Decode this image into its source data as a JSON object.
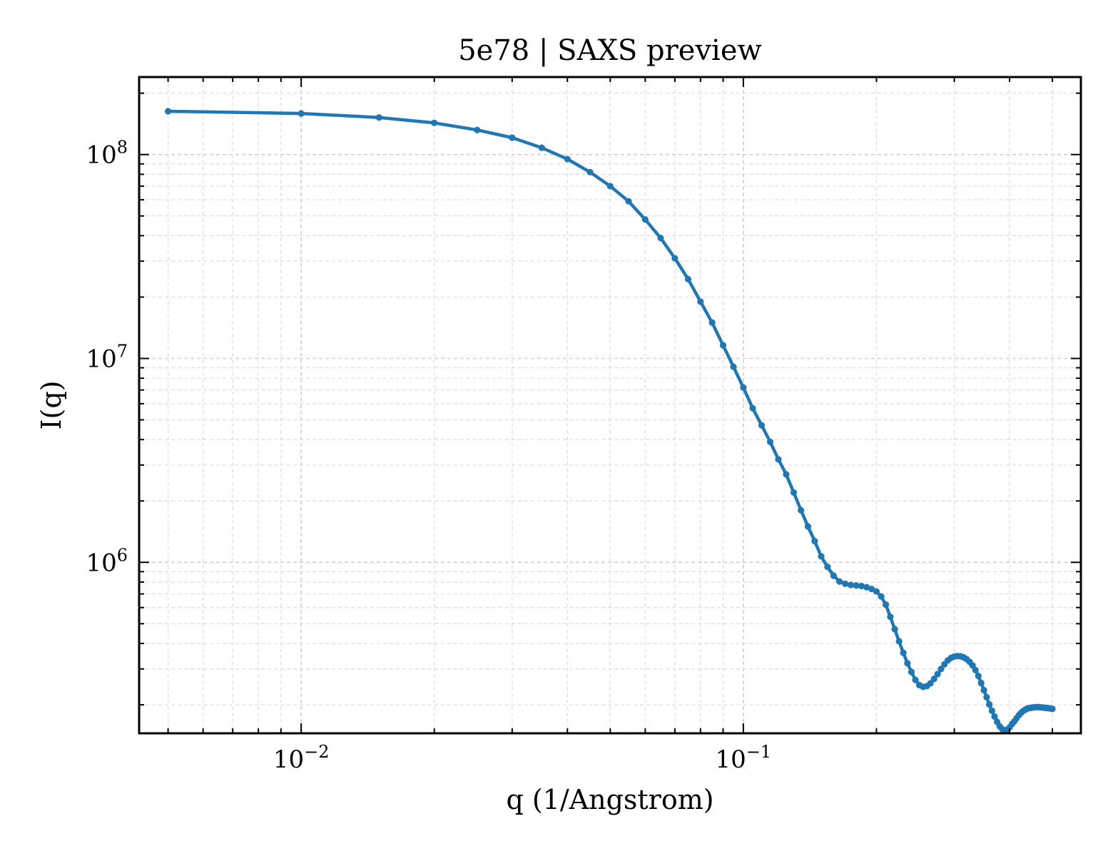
{
  "chart_data": {
    "type": "line",
    "title": "5e78 | SAXS preview",
    "xlabel": "q (1/Angstrom)",
    "ylabel": "I(q)",
    "xscale": "log",
    "yscale": "log",
    "xlim": [
      0.0043,
      0.58
    ],
    "ylim": [
      145000,
      240000000
    ],
    "grid": true,
    "legend": "none",
    "line_color": "#1f77b4",
    "markers": true,
    "x_ticks": [
      {
        "value": 0.01,
        "label": "10^-2",
        "base": "10",
        "exp": "−2"
      },
      {
        "value": 0.1,
        "label": "10^-1",
        "base": "10",
        "exp": "−1"
      }
    ],
    "y_ticks": [
      {
        "value": 1000000,
        "label": "10^6",
        "base": "10",
        "exp": "6"
      },
      {
        "value": 10000000,
        "label": "10^7",
        "base": "10",
        "exp": "7"
      },
      {
        "value": 100000000,
        "label": "10^8",
        "base": "10",
        "exp": "8"
      }
    ],
    "series": [
      {
        "x": [
          0.005,
          0.01,
          0.015,
          0.02,
          0.025,
          0.03,
          0.035,
          0.04,
          0.045,
          0.05,
          0.055,
          0.06,
          0.065,
          0.07,
          0.075,
          0.08,
          0.085,
          0.09,
          0.095,
          0.1,
          0.105,
          0.11,
          0.115,
          0.12,
          0.125,
          0.13,
          0.135,
          0.14,
          0.145,
          0.15,
          0.155,
          0.16,
          0.165,
          0.17,
          0.175,
          0.18,
          0.185,
          0.19,
          0.195,
          0.2,
          0.205,
          0.21,
          0.215,
          0.22,
          0.225,
          0.23,
          0.235,
          0.24,
          0.245,
          0.25,
          0.255,
          0.26,
          0.265,
          0.27,
          0.275,
          0.28,
          0.285,
          0.29,
          0.295,
          0.3,
          0.305,
          0.31,
          0.315,
          0.32,
          0.325,
          0.33,
          0.335,
          0.34,
          0.345,
          0.35,
          0.355,
          0.36,
          0.365,
          0.37,
          0.375,
          0.38,
          0.385,
          0.39,
          0.395,
          0.4,
          0.405,
          0.41,
          0.415,
          0.42,
          0.425,
          0.43,
          0.435,
          0.44,
          0.445,
          0.45,
          0.455,
          0.46,
          0.465,
          0.47,
          0.475,
          0.48,
          0.485,
          0.49,
          0.495,
          0.5
        ],
        "y": [
          163000000,
          159000000,
          152000000,
          143000000,
          132000000,
          121000000,
          108000000,
          95000000,
          82000000,
          70000000,
          59000000,
          48000000,
          39000000,
          31000000,
          24500000,
          19000000,
          15000000,
          11600000,
          9100000,
          7200000,
          5700000,
          4700000,
          3900000,
          3200000,
          2700000,
          2200000,
          1800000,
          1500000,
          1270000,
          1070000,
          950000,
          860000,
          805000,
          785000,
          775000,
          770000,
          765000,
          755000,
          740000,
          720000,
          680000,
          620000,
          540000,
          470000,
          410000,
          360000,
          320000,
          290000,
          265000,
          250000,
          245000,
          247000,
          255000,
          268000,
          283000,
          300000,
          316000,
          330000,
          340000,
          345000,
          347000,
          346000,
          342000,
          335000,
          325000,
          312000,
          296000,
          277000,
          256000,
          236000,
          218000,
          201000,
          187000,
          175000,
          165000,
          157000,
          152000,
          150000,
          151000,
          155000,
          161000,
          166000,
          172000,
          178000,
          183000,
          187000,
          190000,
          192000,
          193000,
          194000,
          194500,
          195000,
          195000,
          194500,
          194000,
          193500,
          193000,
          192500,
          192000,
          191000
        ]
      }
    ]
  }
}
